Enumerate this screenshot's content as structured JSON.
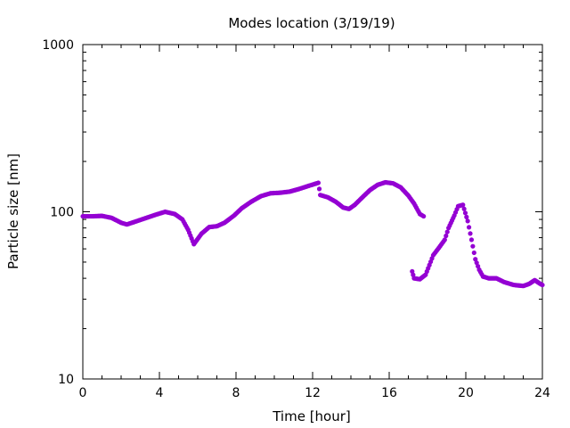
{
  "chart_data": {
    "type": "scatter",
    "title": "Modes location (3/19/19)",
    "xlabel": "Time [hour]",
    "ylabel": "Particle size [nm]",
    "xlim": [
      0,
      24
    ],
    "ylim": [
      10,
      1000
    ],
    "yscale": "log",
    "grid": false,
    "legend": "none",
    "xticks": [
      "0",
      "4",
      "8",
      "12",
      "16",
      "20",
      "24"
    ],
    "yticks": [
      "10",
      "100",
      "1000"
    ],
    "marker_color": "#9400d3",
    "series": [
      {
        "points": [
          [
            0.0,
            94
          ],
          [
            0.5,
            94
          ],
          [
            1.0,
            94.5
          ],
          [
            1.5,
            92
          ],
          [
            2.0,
            86
          ],
          [
            2.3,
            84
          ],
          [
            2.7,
            87
          ],
          [
            3.2,
            91
          ],
          [
            3.8,
            96
          ],
          [
            4.3,
            100
          ],
          [
            4.8,
            97
          ],
          [
            5.2,
            90
          ],
          [
            5.5,
            78
          ],
          [
            5.8,
            64
          ],
          [
            6.2,
            74
          ],
          [
            6.6,
            81
          ],
          [
            7.0,
            82
          ],
          [
            7.4,
            86
          ],
          [
            7.9,
            95
          ],
          [
            8.3,
            105
          ],
          [
            8.8,
            115
          ],
          [
            9.3,
            124
          ],
          [
            9.8,
            129
          ],
          [
            10.3,
            130
          ],
          [
            10.8,
            132
          ],
          [
            11.3,
            137
          ],
          [
            11.8,
            143
          ],
          [
            12.3,
            149
          ],
          [
            12.4,
            126
          ],
          [
            12.8,
            122
          ],
          [
            13.2,
            115
          ],
          [
            13.6,
            106
          ],
          [
            13.9,
            104
          ],
          [
            14.2,
            110
          ],
          [
            14.6,
            122
          ],
          [
            15.0,
            135
          ],
          [
            15.4,
            145
          ],
          [
            15.8,
            150
          ],
          [
            16.2,
            148
          ],
          [
            16.6,
            140
          ],
          [
            17.0,
            125
          ],
          [
            17.3,
            112
          ],
          [
            17.6,
            97
          ],
          [
            17.8,
            94
          ],
          [
            17.2,
            44
          ],
          [
            17.3,
            40
          ],
          [
            17.6,
            39.5
          ],
          [
            17.9,
            42
          ],
          [
            18.1,
            48
          ],
          [
            18.3,
            55
          ],
          [
            18.6,
            61
          ],
          [
            18.9,
            68
          ],
          [
            19.1,
            80
          ],
          [
            19.4,
            95
          ],
          [
            19.6,
            108
          ],
          [
            19.85,
            110
          ],
          [
            20.1,
            88
          ],
          [
            20.3,
            68
          ],
          [
            20.5,
            52
          ],
          [
            20.7,
            45
          ],
          [
            20.9,
            41
          ],
          [
            21.2,
            40
          ],
          [
            21.6,
            40
          ],
          [
            22.0,
            38
          ],
          [
            22.5,
            36.5
          ],
          [
            23.0,
            36
          ],
          [
            23.3,
            37
          ],
          [
            23.6,
            39
          ],
          [
            23.9,
            37
          ],
          [
            24.0,
            36.5
          ]
        ]
      }
    ]
  }
}
